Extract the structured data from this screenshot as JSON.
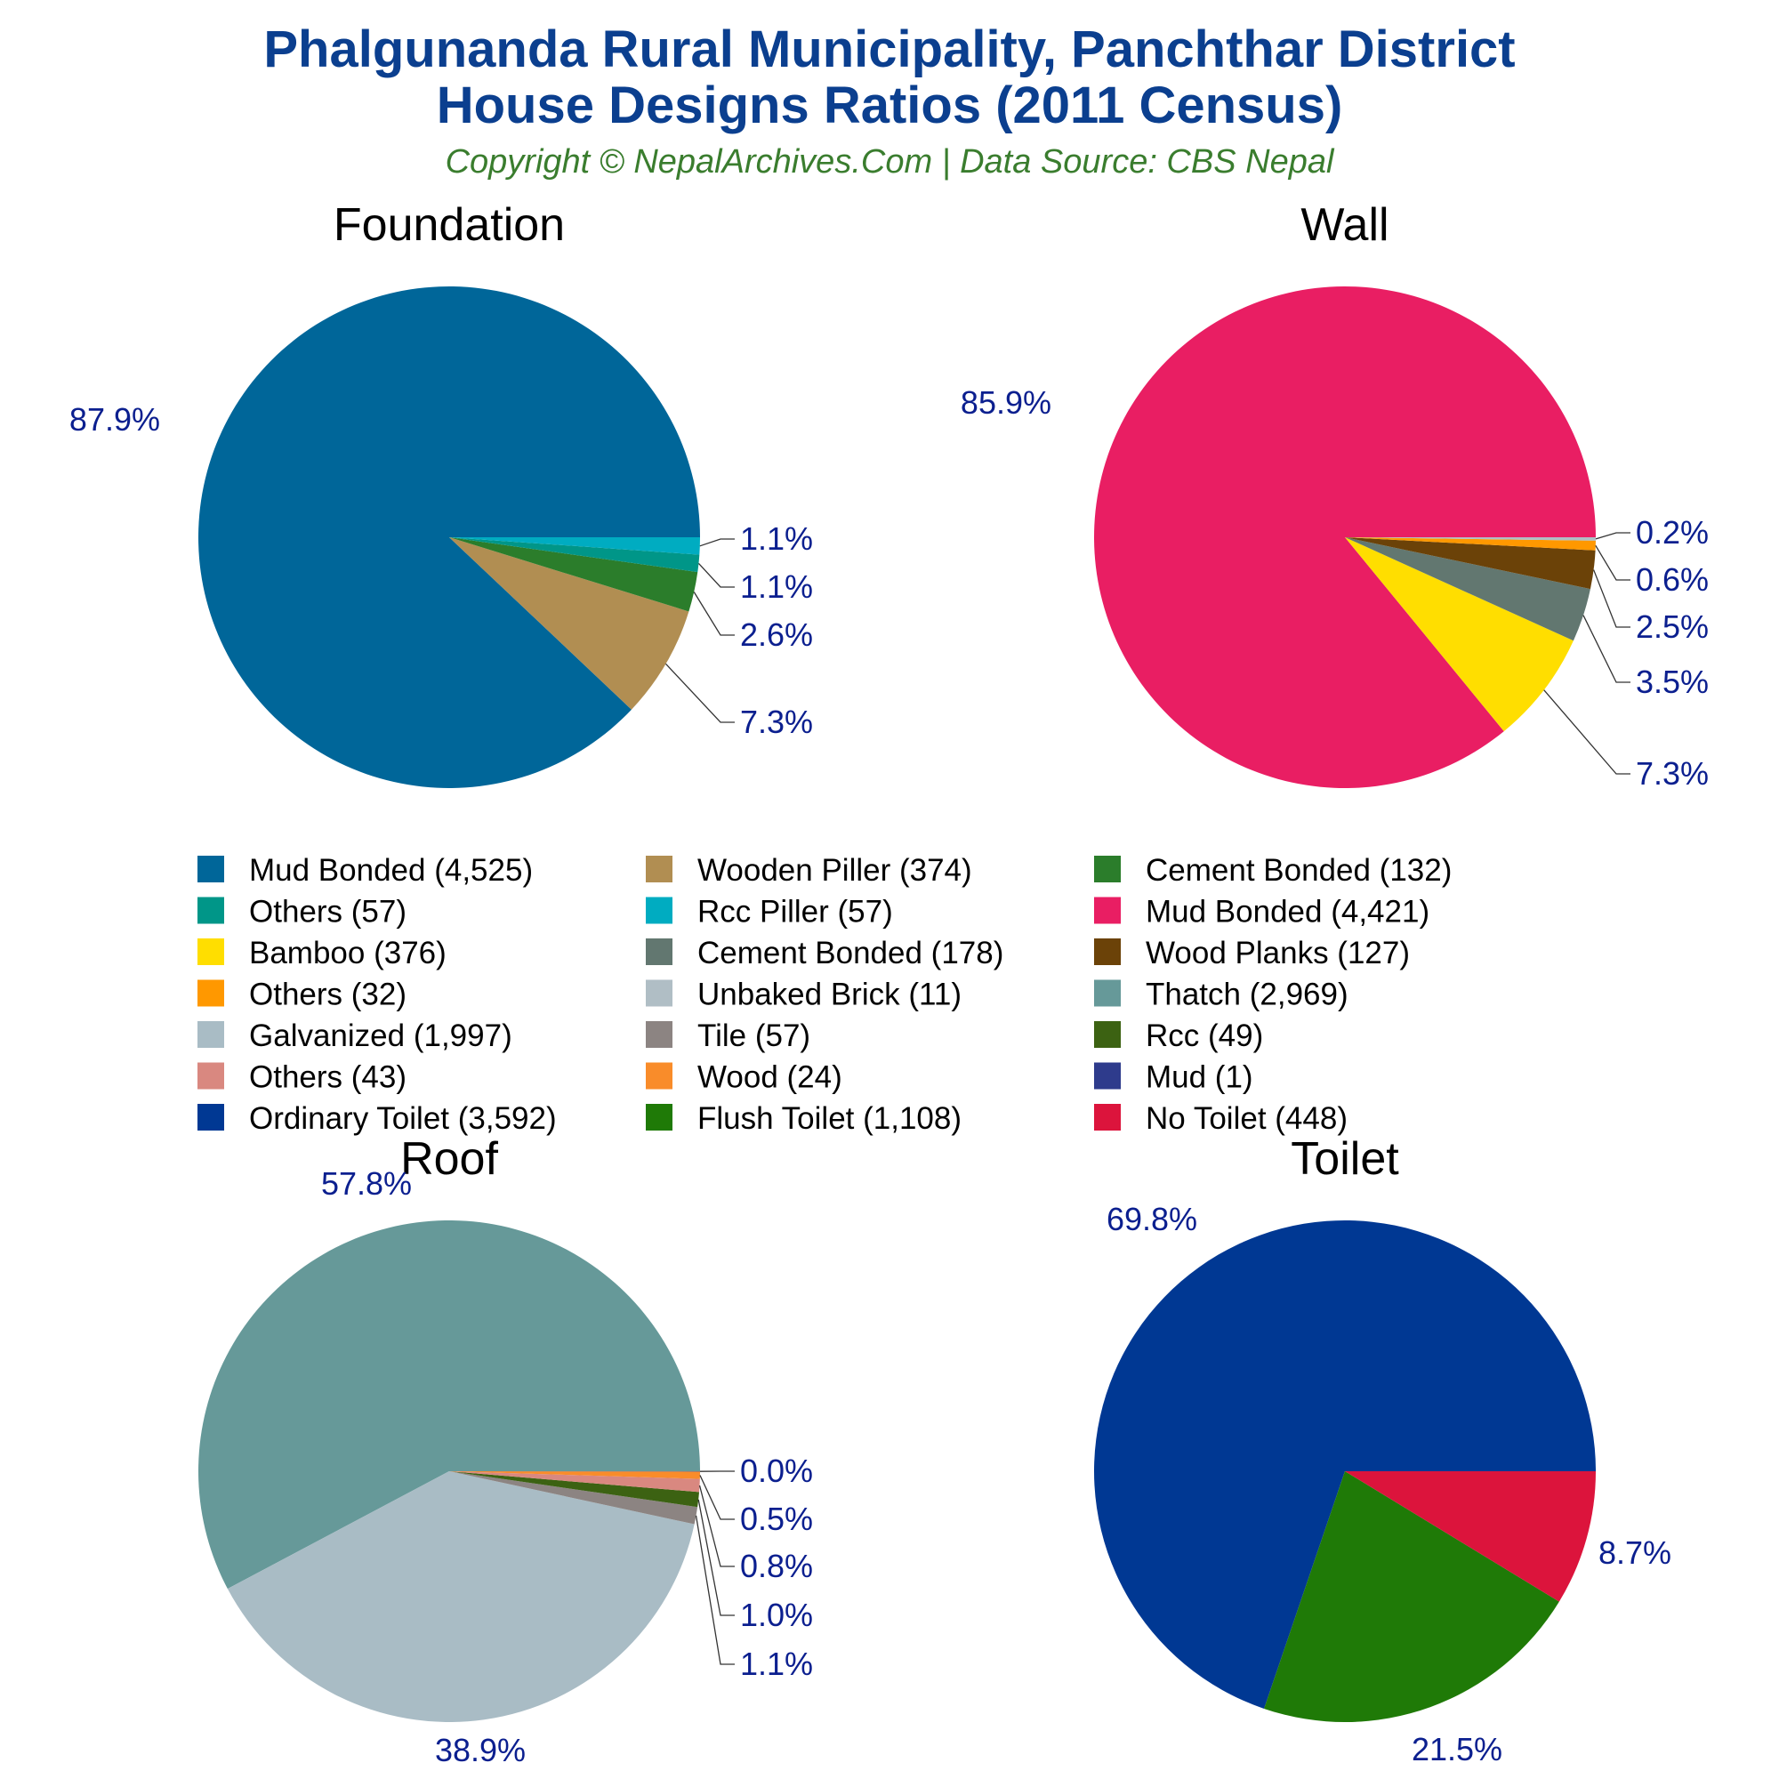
{
  "header": {
    "title_line1": "Phalgunanda Rural Municipality, Panchthar District",
    "title_line2": "House Designs Ratios (2011 Census)",
    "subtitle": "Copyright © NepalArchives.Com | Data Source: CBS Nepal"
  },
  "chart_data": [
    {
      "type": "pie",
      "title": "Foundation",
      "slices": [
        {
          "label": "Mud Bonded (4,525)",
          "value": 4525,
          "color": "#006699",
          "pct_label": "87.9%"
        },
        {
          "label": "Wooden Piller (374)",
          "value": 374,
          "color": "#b18e52",
          "pct_label": "7.3%"
        },
        {
          "label": "Cement Bonded (132)",
          "value": 132,
          "color": "#2b7d2b",
          "pct_label": "2.6%"
        },
        {
          "label": "Others (57)",
          "value": 57,
          "color": "#009688",
          "pct_label": "1.1%"
        },
        {
          "label": "Rcc Piller (57)",
          "value": 57,
          "color": "#00acc1",
          "pct_label": "1.1%"
        }
      ]
    },
    {
      "type": "pie",
      "title": "Wall",
      "slices": [
        {
          "label": "Mud Bonded (4,421)",
          "value": 4421,
          "color": "#e91e63",
          "pct_label": "85.9%"
        },
        {
          "label": "Bamboo (376)",
          "value": 376,
          "color": "#ffde00",
          "pct_label": "7.3%"
        },
        {
          "label": "Cement Bonded (178)",
          "value": 178,
          "color": "#627770",
          "pct_label": "3.5%"
        },
        {
          "label": "Wood Planks (127)",
          "value": 127,
          "color": "#6b4208",
          "pct_label": "2.5%"
        },
        {
          "label": "Others (32)",
          "value": 32,
          "color": "#ff9800",
          "pct_label": "0.6%"
        },
        {
          "label": "Unbaked Brick (11)",
          "value": 11,
          "color": "#b0bec5",
          "pct_label": "0.2%"
        }
      ]
    },
    {
      "type": "pie",
      "title": "Roof",
      "slices": [
        {
          "label": "Thatch (2,969)",
          "value": 2969,
          "color": "#669999",
          "pct_label": "57.8%"
        },
        {
          "label": "Galvanized (1,997)",
          "value": 1997,
          "color": "#a9bcc5",
          "pct_label": "38.9%"
        },
        {
          "label": "Tile (57)",
          "value": 57,
          "color": "#8c8482",
          "pct_label": "1.1%"
        },
        {
          "label": "Rcc (49)",
          "value": 49,
          "color": "#3c6212",
          "pct_label": "1.0%"
        },
        {
          "label": "Others (43)",
          "value": 43,
          "color": "#d98880",
          "pct_label": "0.8%"
        },
        {
          "label": "Wood (24)",
          "value": 24,
          "color": "#f98c2a",
          "pct_label": "0.5%"
        },
        {
          "label": "Mud (1)",
          "value": 1,
          "color": "#2e3b8c",
          "pct_label": "0.0%"
        }
      ]
    },
    {
      "type": "pie",
      "title": "Toilet",
      "slices": [
        {
          "label": "Ordinary Toilet (3,592)",
          "value": 3592,
          "color": "#003893",
          "pct_label": "69.8%"
        },
        {
          "label": "Flush Toilet (1,108)",
          "value": 1108,
          "color": "#1f7a07",
          "pct_label": "21.5%"
        },
        {
          "label": "No Toilet (448)",
          "value": 448,
          "color": "#dc143c",
          "pct_label": "8.7%"
        }
      ]
    }
  ],
  "legend": [
    {
      "label": "Mud Bonded (4,525)",
      "color": "#006699"
    },
    {
      "label": "Wooden Piller (374)",
      "color": "#b18e52"
    },
    {
      "label": "Cement Bonded (132)",
      "color": "#2b7d2b"
    },
    {
      "label": "Others (57)",
      "color": "#009688"
    },
    {
      "label": "Rcc Piller (57)",
      "color": "#00acc1"
    },
    {
      "label": "Mud Bonded (4,421)",
      "color": "#e91e63"
    },
    {
      "label": "Bamboo (376)",
      "color": "#ffde00"
    },
    {
      "label": "Cement Bonded (178)",
      "color": "#627770"
    },
    {
      "label": "Wood Planks (127)",
      "color": "#6b4208"
    },
    {
      "label": "Others (32)",
      "color": "#ff9800"
    },
    {
      "label": "Unbaked Brick (11)",
      "color": "#b0bec5"
    },
    {
      "label": "Thatch (2,969)",
      "color": "#669999"
    },
    {
      "label": "Galvanized (1,997)",
      "color": "#a9bcc5"
    },
    {
      "label": "Tile (57)",
      "color": "#8c8482"
    },
    {
      "label": "Rcc (49)",
      "color": "#3c6212"
    },
    {
      "label": "Others (43)",
      "color": "#d98880"
    },
    {
      "label": "Wood (24)",
      "color": "#f98c2a"
    },
    {
      "label": "Mud (1)",
      "color": "#2e3b8c"
    },
    {
      "label": "Ordinary Toilet (3,592)",
      "color": "#003893"
    },
    {
      "label": "Flush Toilet (1,108)",
      "color": "#1f7a07"
    },
    {
      "label": "No Toilet (448)",
      "color": "#dc143c"
    }
  ]
}
